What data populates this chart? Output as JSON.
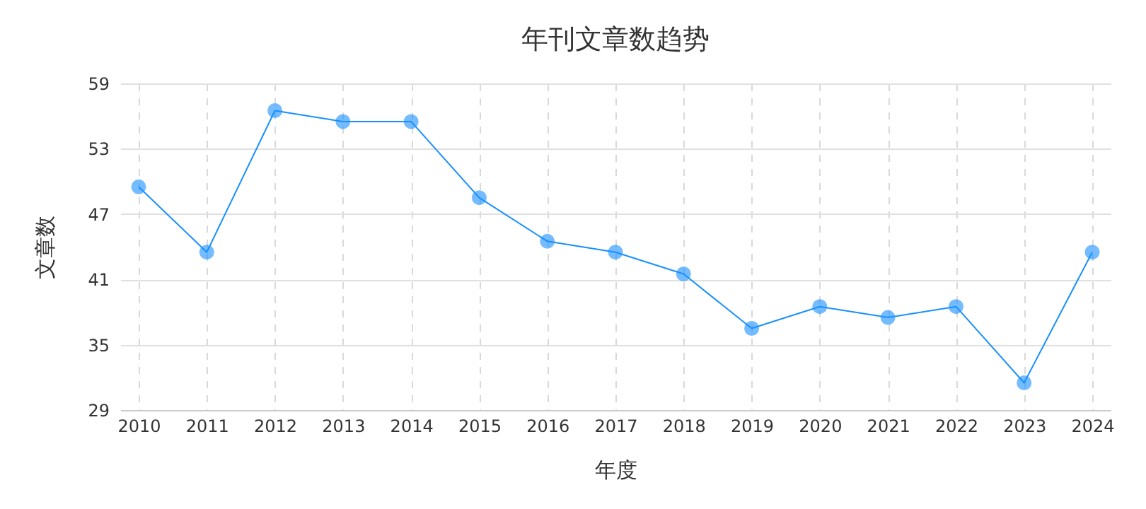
{
  "chart_data": {
    "type": "line",
    "title": "年刊文章数趋势",
    "xlabel": "年度",
    "ylabel": "文章数",
    "categories": [
      "2010",
      "2011",
      "2012",
      "2013",
      "2014",
      "2015",
      "2016",
      "2017",
      "2018",
      "2019",
      "2020",
      "2021",
      "2022",
      "2023",
      "2024"
    ],
    "series": [
      {
        "color": "#1890ff",
        "values": [
          49.5,
          43.5,
          56.5,
          55.5,
          55.5,
          48.5,
          44.5,
          43.5,
          41.5,
          36.5,
          38.5,
          37.5,
          38.5,
          31.5,
          43.5
        ]
      }
    ],
    "ylim": [
      29,
      59
    ],
    "yticks": [
      29,
      35,
      41,
      47,
      53,
      59
    ],
    "grid": true,
    "marker": "circle",
    "line_style": "solid"
  }
}
